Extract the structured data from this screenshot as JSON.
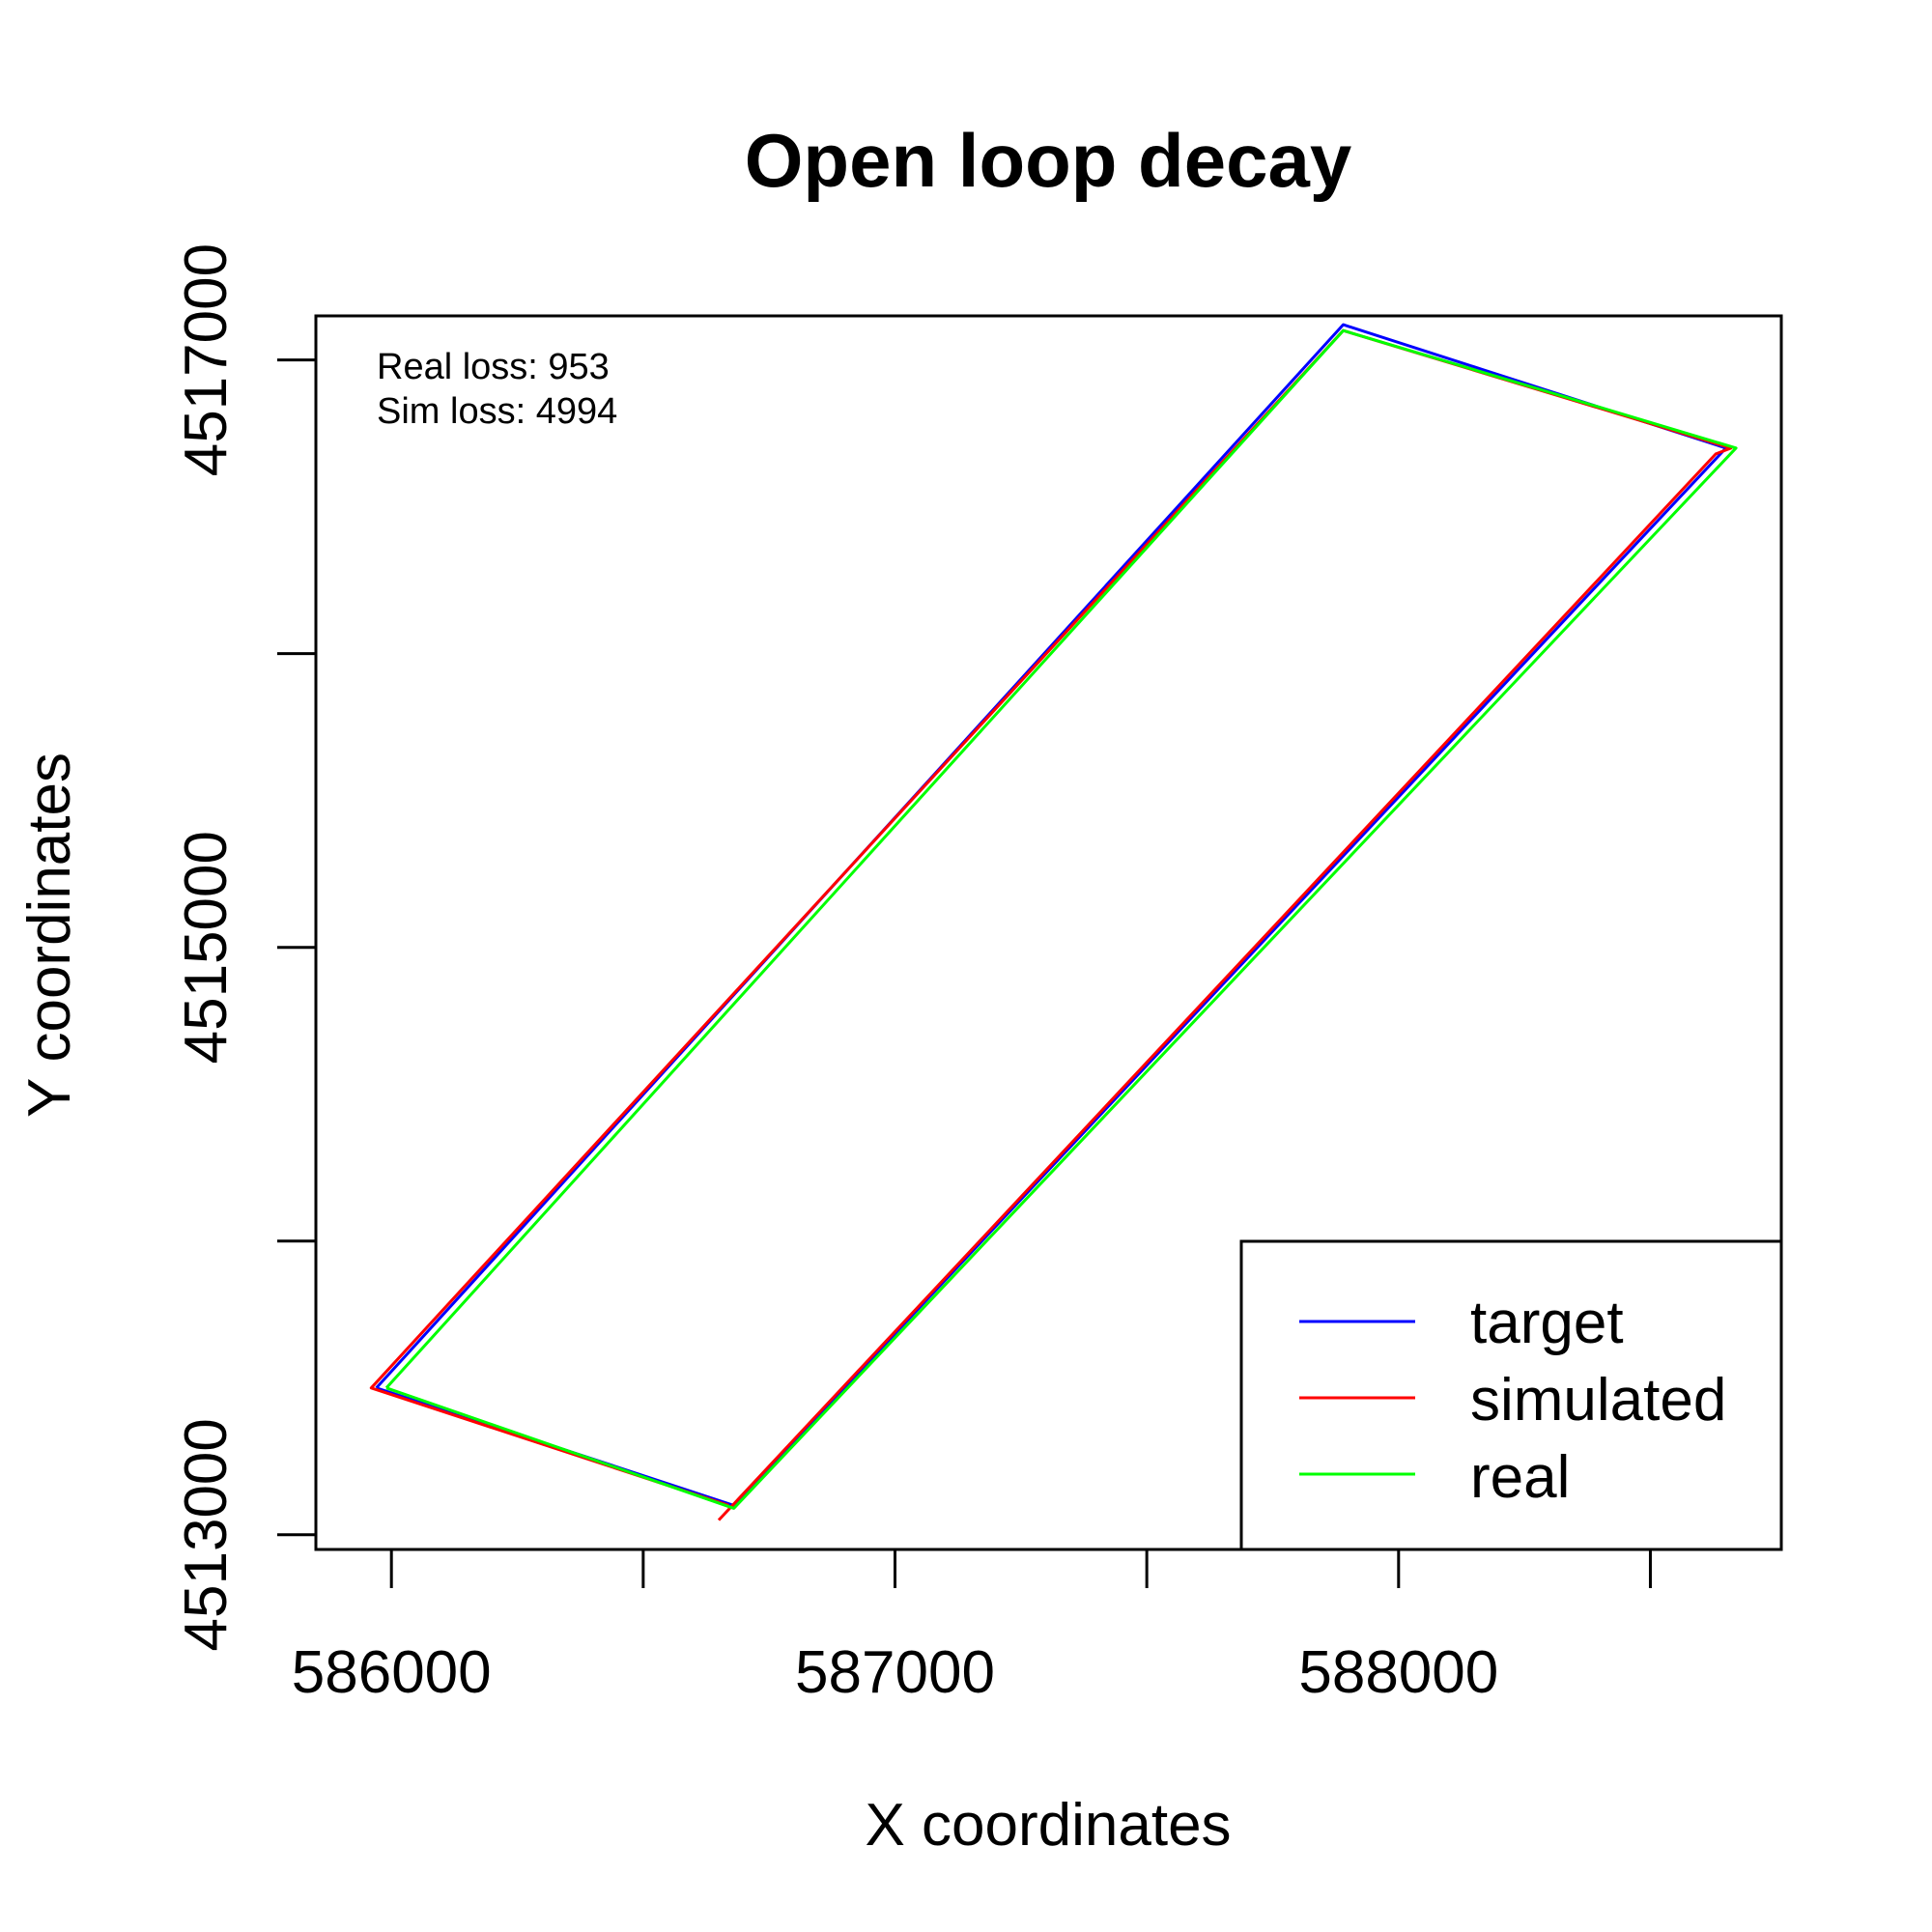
{
  "chart_data": {
    "type": "line",
    "title": "Open loop decay",
    "xlabel": "X coordinates",
    "ylabel": "Y coordinates",
    "xlim": [
      585850,
      588760
    ],
    "ylim": [
      4512950,
      4517150
    ],
    "x_ticks": [
      586000,
      586500,
      587000,
      587500,
      588000,
      588500
    ],
    "x_tick_labels": [
      "586000",
      "587000",
      "588000"
    ],
    "x_tick_labeled": [
      586000,
      587000,
      588000
    ],
    "y_ticks": [
      4513000,
      4514000,
      4515000,
      4516000,
      4517000
    ],
    "y_tick_labels": [
      "4513000",
      "4515000",
      "4517000"
    ],
    "y_tick_labeled": [
      4513000,
      4515000,
      4517000
    ],
    "annotations": [
      "Real loss: 953",
      "Sim loss: 4994"
    ],
    "legend": {
      "position": "bottom-right"
    },
    "series": [
      {
        "name": "target",
        "color": "#0000ff",
        "points": [
          [
            585970,
            4513500
          ],
          [
            586680,
            4513100
          ],
          [
            588650,
            4516700
          ],
          [
            587890,
            4517120
          ],
          [
            585970,
            4513500
          ]
        ]
      },
      {
        "name": "simulated",
        "color": "#ff0000",
        "points": [
          [
            586650,
            4513050
          ],
          [
            588630,
            4516680
          ],
          [
            588660,
            4516700
          ],
          [
            587890,
            4517100
          ],
          [
            585960,
            4513500
          ],
          [
            586670,
            4513100
          ]
        ]
      },
      {
        "name": "real",
        "color": "#00ff00",
        "points": [
          [
            585990,
            4513500
          ],
          [
            586680,
            4513090
          ],
          [
            588670,
            4516700
          ],
          [
            587890,
            4517100
          ],
          [
            585990,
            4513500
          ]
        ]
      }
    ]
  }
}
